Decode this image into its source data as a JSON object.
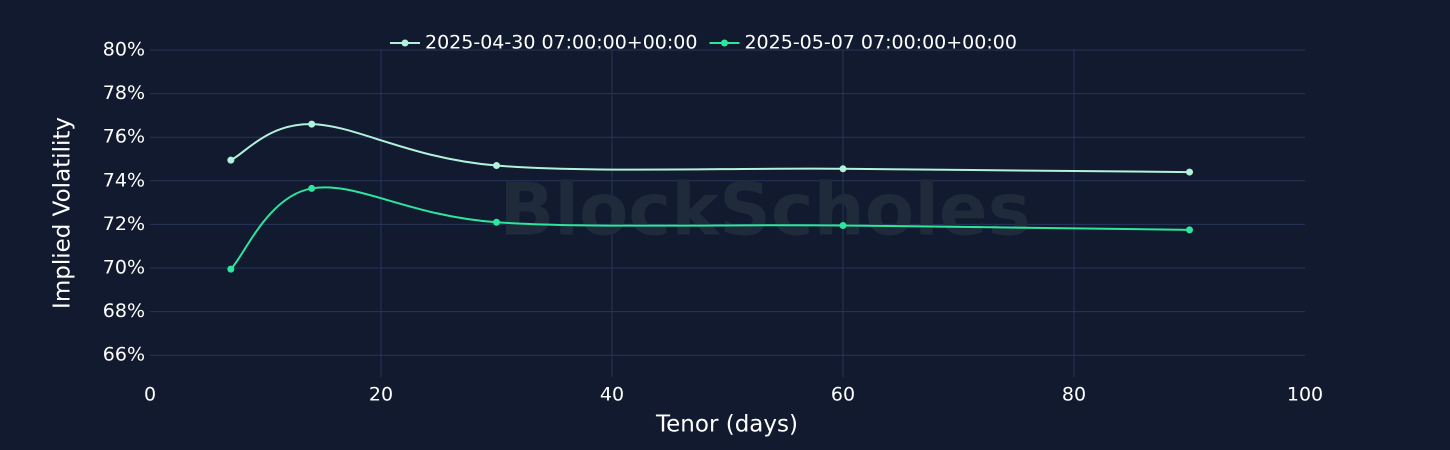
{
  "chart_data": {
    "type": "line",
    "x_label": "Tenor (days)",
    "y_label": "Implied Volatility",
    "watermark": "BlockScholes",
    "x": [
      7,
      14,
      30,
      60,
      90
    ],
    "series": [
      {
        "name": "2025-04-30 07:00:00+00:00",
        "color": "#b2f2dc",
        "values": [
          74.95,
          76.6,
          74.7,
          74.55,
          74.4
        ]
      },
      {
        "name": "2025-05-07 07:00:00+00:00",
        "color": "#2ee59d",
        "values": [
          69.95,
          73.65,
          72.1,
          71.95,
          71.75
        ]
      }
    ],
    "xlim": [
      0,
      100
    ],
    "xticks": [
      0,
      20,
      40,
      60,
      80,
      100
    ],
    "ylim": [
      65,
      80
    ],
    "yticks": [
      {
        "value": 66,
        "label": "66%"
      },
      {
        "value": 68,
        "label": "68%"
      },
      {
        "value": 70,
        "label": "70%"
      },
      {
        "value": 72,
        "label": "72%"
      },
      {
        "value": 74,
        "label": "74%"
      },
      {
        "value": 76,
        "label": "76%"
      },
      {
        "value": 78,
        "label": "78%"
      },
      {
        "value": 80,
        "label": "80%"
      }
    ],
    "grid": true,
    "legend": "top"
  }
}
